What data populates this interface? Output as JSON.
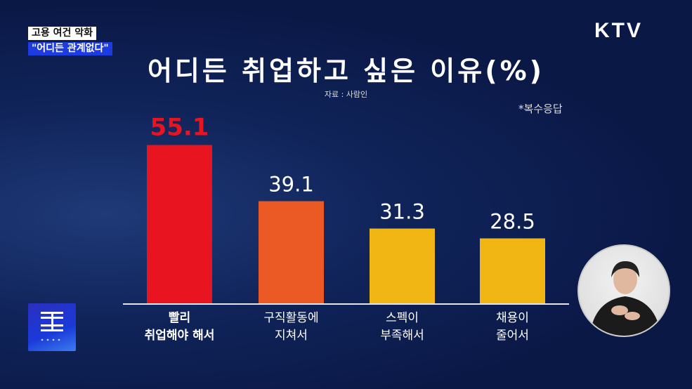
{
  "caption": {
    "line1": "고용 여건 악화",
    "line2": "\"어디든 관계없다\""
  },
  "channel": "KTV",
  "program_logo": "대한뉴스 NEWS",
  "chart_data": {
    "type": "bar",
    "title": "어디든 취업하고 싶은 이유(%)",
    "source": "자료 : 사람인",
    "note": "*복수응답",
    "categories": [
      [
        "빨리",
        "취업해야 해서"
      ],
      [
        "구직활동에",
        "지쳐서"
      ],
      [
        "스펙이",
        "부족해서"
      ],
      [
        "채용이",
        "줄어서"
      ]
    ],
    "values": [
      55.1,
      39.1,
      31.3,
      28.5
    ],
    "labels": [
      "55.1",
      "39.1",
      "31.3",
      "28.5"
    ],
    "colors": [
      "#e8141f",
      "#eb5a24",
      "#f2b614",
      "#f2b614"
    ],
    "label_colors": [
      "#e8141f",
      "#ffffff",
      "#ffffff",
      "#ffffff"
    ],
    "grid": false
  }
}
